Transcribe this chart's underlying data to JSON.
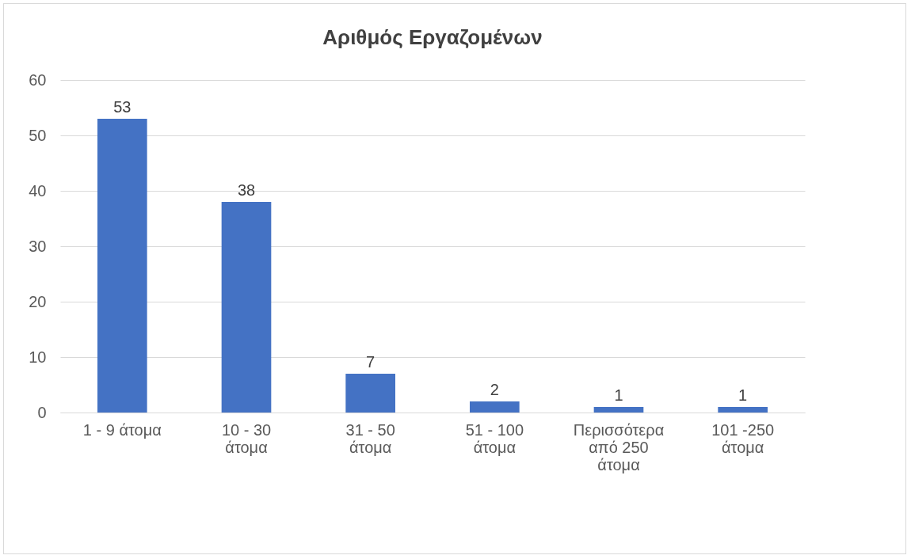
{
  "chart_data": {
    "type": "bar",
    "title": "Αριθμός Εργαζομένων",
    "categories": [
      "1 - 9 άτομα",
      "10 - 30 άτομα",
      "31 - 50 άτομα",
      "51 - 100 άτομα",
      "Περισσότερα από 250 άτομα",
      "101 -250 άτομα"
    ],
    "values": [
      53,
      38,
      7,
      2,
      1,
      1
    ],
    "color": "#4472c4",
    "ylim": [
      0,
      60
    ],
    "yticks": [
      0,
      10,
      20,
      30,
      40,
      50,
      60
    ],
    "grid": "y",
    "data_labels": true
  }
}
